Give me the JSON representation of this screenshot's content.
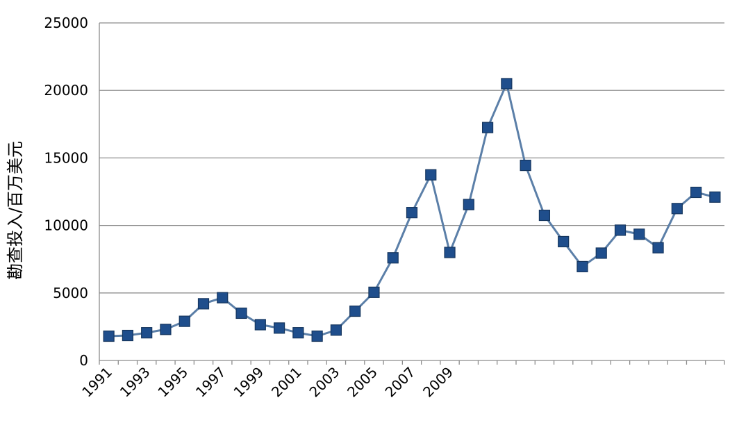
{
  "chart_data": {
    "type": "line",
    "ylabel": "勘查投入/百万美元",
    "xlabel": "",
    "title": "",
    "ylim": [
      0,
      25000
    ],
    "yticks": [
      "0",
      "5000",
      "10000",
      "15000",
      "20000",
      "25000"
    ],
    "grid": true,
    "legend": "none",
    "x_tick_labels": [
      "1991",
      "1993",
      "1995",
      "1997",
      "1999",
      "2001",
      "2003",
      "2005",
      "2007",
      "2009"
    ],
    "x": [
      1991,
      1992,
      1993,
      1994,
      1995,
      1996,
      1997,
      1998,
      1999,
      2000,
      2001,
      2002,
      2003,
      2004,
      2005,
      2006,
      2007,
      2008,
      2009,
      2010,
      2011,
      2012,
      2013,
      2014,
      2015,
      2016,
      2017,
      2018,
      2019,
      2020,
      2021,
      2022,
      2023
    ],
    "series": [
      {
        "values": [
          1800,
          1850,
          2050,
          2300,
          2900,
          4200,
          4650,
          3500,
          2650,
          2400,
          2050,
          1800,
          2250,
          3650,
          5050,
          7600,
          10950,
          13750,
          8000,
          11550,
          17250,
          20500,
          14450,
          10750,
          8800,
          6950,
          7950,
          9650,
          9350,
          8350,
          11250,
          12450,
          12100
        ]
      }
    ],
    "colors": {
      "line": "#5b7fa8",
      "marker_fill": "#1f4e8c",
      "marker_stroke": "#16365e",
      "grid": "#8c8c8c",
      "axis": "#8c8c8c",
      "text": "#000000"
    }
  }
}
